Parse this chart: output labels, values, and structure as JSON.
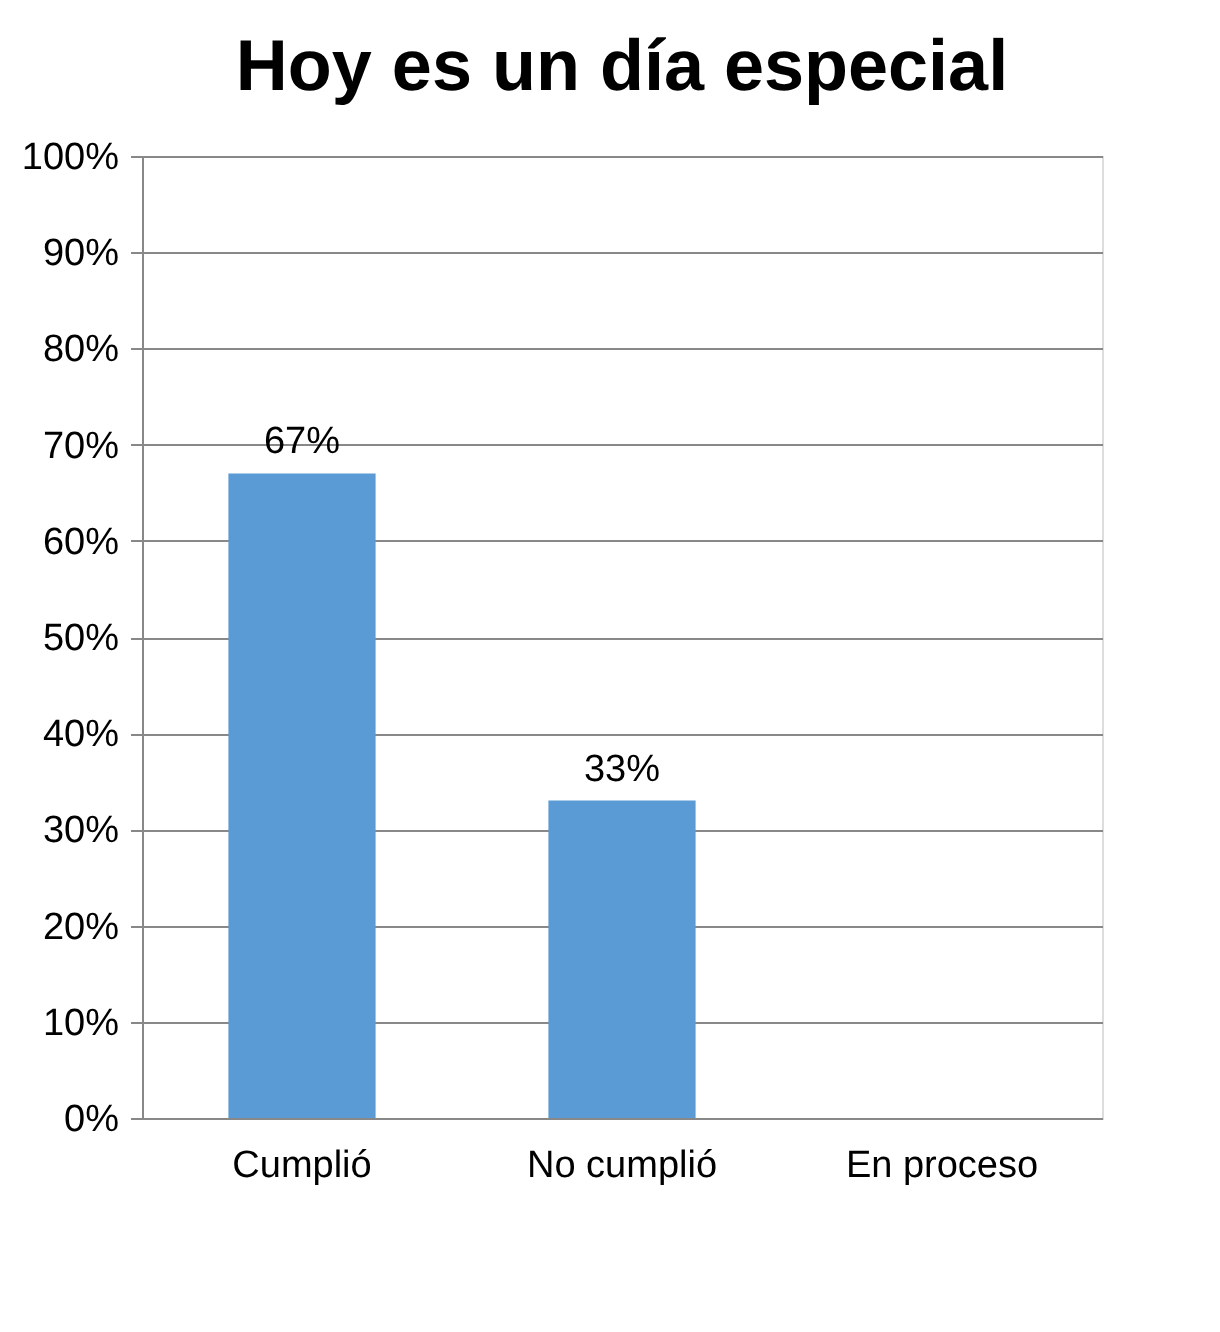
{
  "chart_data": {
    "type": "bar",
    "title": "Hoy es un día especial",
    "categories": [
      "Cumplió",
      "No cumplió",
      "En proceso"
    ],
    "values": [
      67,
      33,
      0
    ],
    "value_labels": [
      "67%",
      "33%",
      null
    ],
    "color": "#5b9bd5",
    "ylim": [
      0,
      100
    ],
    "yticks": [
      {
        "value": 0,
        "label": "0%"
      },
      {
        "value": 10,
        "label": "10%"
      },
      {
        "value": 20,
        "label": "20%"
      },
      {
        "value": 30,
        "label": "30%"
      },
      {
        "value": 40,
        "label": "40%"
      },
      {
        "value": 50,
        "label": "50%"
      },
      {
        "value": 60,
        "label": "60%"
      },
      {
        "value": 70,
        "label": "70%"
      },
      {
        "value": 80,
        "label": "80%"
      },
      {
        "value": 90,
        "label": "90%"
      },
      {
        "value": 100,
        "label": "100%"
      }
    ],
    "grid": "y"
  }
}
